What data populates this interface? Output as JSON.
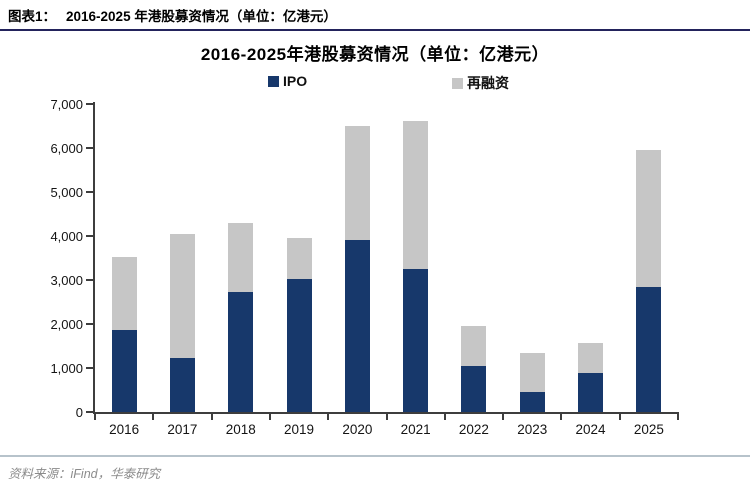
{
  "figure": {
    "header_label": "图表1：",
    "header_title": "2016-2025 年港股募资情况（单位：亿港元）",
    "footer_source": "资料来源：iFind，华泰研究"
  },
  "colors": {
    "ipo_navy": "#17386b",
    "refinance_gray": "#c6c6c6",
    "header_rule": "#23235c",
    "footer_rule": "#b7c3cb",
    "axis": "#3d3d3d"
  },
  "chart_data": {
    "type": "bar",
    "stacked": true,
    "title": "2016-2025年港股募资情况（单位：亿港元）",
    "categories": [
      "2016",
      "2017",
      "2018",
      "2019",
      "2020",
      "2021",
      "2022",
      "2023",
      "2024",
      "2025"
    ],
    "series": [
      {
        "name": "IPO",
        "color": "#17386b",
        "values": [
          1870,
          1220,
          2720,
          3030,
          3900,
          3250,
          1040,
          460,
          880,
          2850
        ]
      },
      {
        "name": "再融资",
        "color": "#c6c6c6",
        "values": [
          1660,
          2830,
          1580,
          920,
          2600,
          3370,
          910,
          890,
          680,
          3100
        ]
      }
    ],
    "totals": [
      3530,
      4050,
      4300,
      3950,
      6500,
      6620,
      1950,
      1350,
      1560,
      5950
    ],
    "xlabel": "",
    "ylabel": "",
    "ylim": [
      0,
      7000
    ],
    "ytick_step": 1000,
    "grid": false,
    "legend_position": "top",
    "legend_x_offsets": [
      268,
      452
    ]
  }
}
